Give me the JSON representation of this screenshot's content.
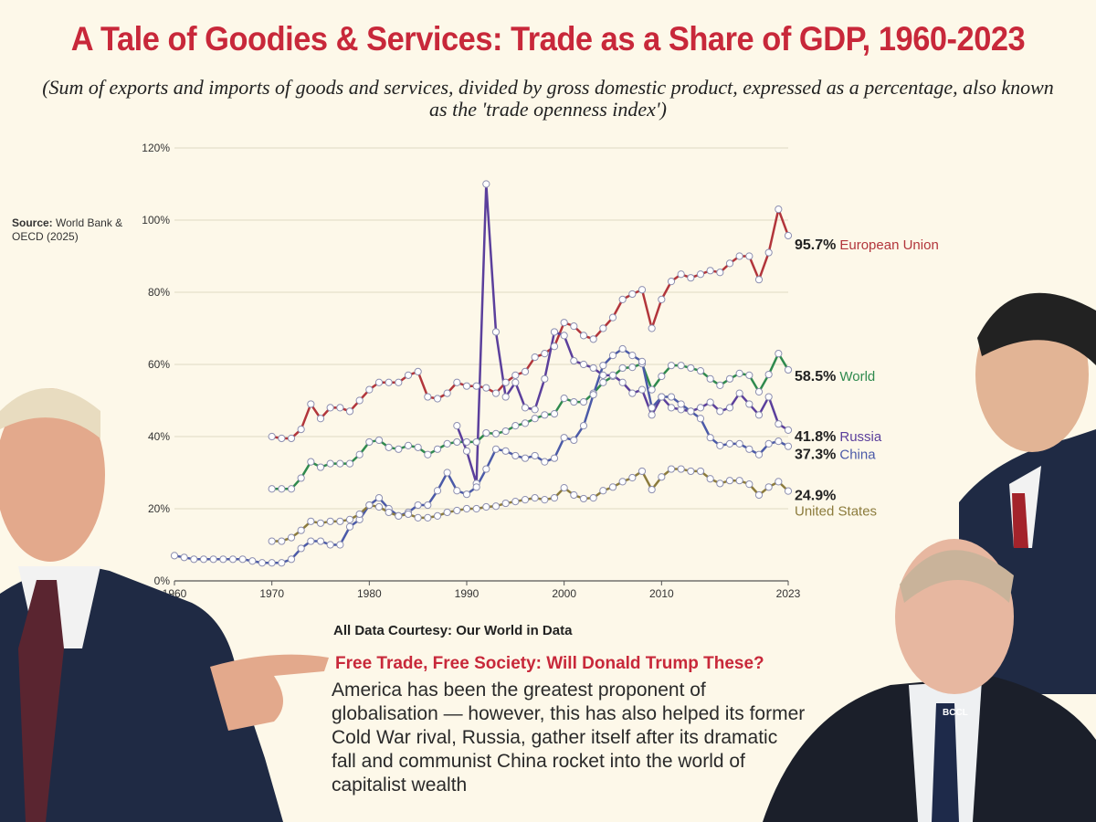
{
  "title": "A Tale of Goodies & Services: Trade as a Share of GDP, 1960-2023",
  "subtitle": "(Sum of  exports and imports of  goods and services, divided by gross domestic product, expressed as a percentage, also known as the 'trade openness index')",
  "source": {
    "label": "Source:",
    "text": " World Bank & OECD (2025)"
  },
  "courtesy": "All Data Courtesy:  Our World in Data",
  "headline": "Free Trade, Free Society: Will Donald Trump These?",
  "body": "America has been the greatest proponent of globalisation — however, this has also helped its former Cold War rival, Russia, gather itself after its dramatic fall and communist China rocket into the world of capitalist wealth",
  "watermark": "BCCL",
  "photos": [
    "donald-trump-photo",
    "xi-jinping-photo",
    "vladimir-putin-photo"
  ],
  "chart_data": {
    "type": "line",
    "xlim": [
      1960,
      2023
    ],
    "ylim": [
      0,
      120
    ],
    "x_ticks": [
      "1960",
      "1970",
      "1980",
      "1990",
      "2000",
      "2010",
      "2023"
    ],
    "x_tick_values": [
      1960,
      1970,
      1980,
      1990,
      2000,
      2010,
      2023
    ],
    "y_ticks": [
      "0%",
      "20%",
      "40%",
      "60%",
      "80%",
      "100%",
      "120%"
    ],
    "y_tick_values": [
      0,
      20,
      40,
      60,
      80,
      100,
      120
    ],
    "grid": "horizontal",
    "markers": "open-circles",
    "series": [
      {
        "name": "European Union",
        "end_label": "95.7%",
        "color": "#b2353b",
        "start": 1970,
        "values": [
          40,
          39.5,
          39.5,
          42,
          49,
          45,
          48,
          48,
          47,
          50,
          53,
          55,
          55,
          55,
          57,
          58,
          51,
          50.5,
          52,
          55,
          54,
          54,
          53.5,
          52,
          55,
          57,
          58,
          62,
          63,
          65,
          71.6,
          70.6,
          68,
          67,
          70,
          73,
          78,
          79.5,
          80.7,
          70,
          78,
          83,
          85,
          84,
          85,
          86,
          85.5,
          88,
          90,
          90,
          83.5,
          91,
          103,
          95.7
        ]
      },
      {
        "name": "World",
        "end_label": "58.5%",
        "color": "#2f8a4e",
        "start": 1970,
        "values": [
          25.5,
          25.5,
          25.5,
          28.5,
          33,
          31.5,
          32.5,
          32.5,
          32.5,
          35,
          38.5,
          39,
          37,
          36.5,
          37.5,
          37,
          35,
          36.5,
          38,
          38.5,
          38.5,
          38.5,
          41,
          40.8,
          41.5,
          43,
          43.7,
          45,
          46,
          46.3,
          50.6,
          49.6,
          49.6,
          52,
          55,
          56.7,
          59,
          59.2,
          60.2,
          53,
          56.7,
          59.7,
          59.7,
          59,
          58.2,
          56,
          54.2,
          56,
          57.5,
          57,
          52.4,
          57.2,
          63,
          58.5
        ]
      },
      {
        "name": "Russia",
        "end_label": "41.8%",
        "color": "#5b3f9c",
        "start": 1989,
        "values": [
          43,
          36,
          27,
          110,
          69,
          51,
          55,
          48,
          47.5,
          56,
          69,
          68,
          61,
          60,
          59,
          57,
          57,
          55,
          52,
          53,
          46,
          51,
          48,
          47.5,
          47,
          48,
          49.5,
          47,
          48,
          52,
          49,
          46,
          51,
          43.5,
          41.8
        ]
      },
      {
        "name": "China",
        "end_label": "37.3%",
        "color": "#4b5aa8",
        "start": 1960,
        "values": [
          7,
          6.5,
          6,
          6,
          6,
          6,
          6,
          6,
          5.5,
          5,
          5,
          5,
          6,
          9,
          11,
          11,
          10,
          10,
          15,
          17,
          21,
          23,
          20,
          18,
          19,
          21,
          21,
          25,
          30,
          25,
          24,
          26,
          31,
          36.5,
          36,
          34.7,
          34,
          34.7,
          33,
          34,
          39.7,
          39,
          43,
          51.6,
          59.7,
          62.5,
          64.3,
          62.5,
          60.8,
          48,
          51,
          51,
          49,
          47,
          45,
          39.7,
          37.5,
          38,
          38,
          36.5,
          35,
          38,
          38.7,
          37.3
        ]
      },
      {
        "name": "United States",
        "end_label": "24.9%",
        "color": "#8c7b3c",
        "start": 1970,
        "values": [
          11,
          11,
          12,
          14,
          16.5,
          16,
          16.5,
          16.5,
          17,
          18.5,
          21,
          20.5,
          19,
          18,
          18.5,
          17.5,
          17.5,
          18,
          19,
          19.5,
          20,
          20,
          20.5,
          20.7,
          21.5,
          22,
          22.5,
          23,
          22.5,
          23,
          25.8,
          23.8,
          22.8,
          23,
          25,
          26,
          27.5,
          28.6,
          30.4,
          25.3,
          28.8,
          31,
          31,
          30.4,
          30.4,
          28.3,
          27,
          27.8,
          27.8,
          26.8,
          23.8,
          26,
          27.5,
          24.9
        ]
      }
    ]
  }
}
